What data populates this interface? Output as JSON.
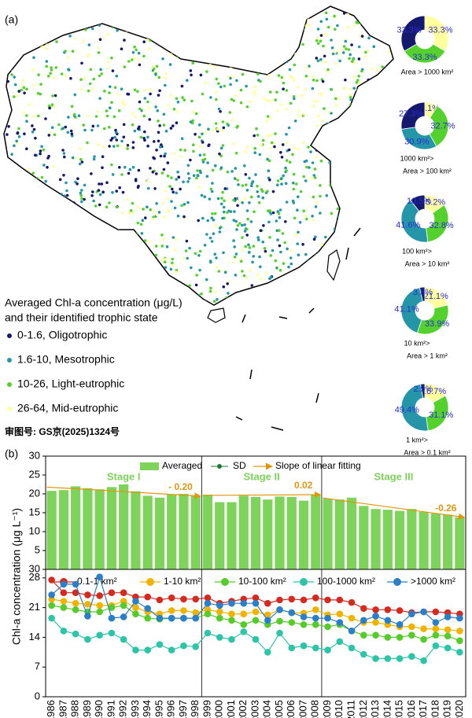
{
  "panel_a": {
    "label": "(a)",
    "legend_title": [
      "Averaged Chl-a concentration (μg/L)",
      "and their identified trophic state"
    ],
    "legend": [
      {
        "label": "0-1.6, Oligotrophic",
        "color": "#15196e"
      },
      {
        "label": "1.6-10, Mesotrophic",
        "color": "#2596a8"
      },
      {
        "label": "10-26, Light-eutrophic",
        "color": "#55d12e"
      },
      {
        "label": "26-64, Mid-eutrophic",
        "color": "#ffff9e"
      }
    ],
    "approval": "审图号: GS京(2025)1324号"
  },
  "panel_b": {
    "label": "(b)"
  },
  "chart_data": [
    {
      "type": "pie",
      "donut": true,
      "values": [
        33.3,
        33.3,
        33.3
      ],
      "value_labels": [
        "33.3%",
        "33.3%",
        "33.3%"
      ],
      "colors": [
        "#ffff9e",
        "#55d12e",
        "#15196e"
      ],
      "caption": [
        "Area > 1000 km²"
      ]
    },
    {
      "type": "pie",
      "donut": true,
      "values": [
        9.1,
        32.7,
        30.9,
        27.3
      ],
      "value_labels": [
        "9.1%",
        "32.7%",
        "30.9%",
        "27.3%"
      ],
      "colors": [
        "#ffff9e",
        "#55d12e",
        "#2596a8",
        "#15196e"
      ],
      "caption": [
        "1000 km²>",
        "Area > 100 km²"
      ]
    },
    {
      "type": "pie",
      "donut": true,
      "values": [
        15.2,
        32.8,
        41.6,
        10.5
      ],
      "value_labels": [
        "15.2%",
        "32.8%",
        "41.6%",
        "10.5%"
      ],
      "colors": [
        "#ffff9e",
        "#55d12e",
        "#2596a8",
        "#15196e"
      ],
      "caption": [
        "100 km²>",
        "Area > 10 km²"
      ]
    },
    {
      "type": "pie",
      "donut": true,
      "values": [
        21.1,
        33.9,
        41.1,
        3.5
      ],
      "value_labels": [
        "21.1%",
        "33.9%",
        "41.1%",
        "3.5%"
      ],
      "colors": [
        "#ffff9e",
        "#55d12e",
        "#2596a8",
        "#15196e"
      ],
      "caption": [
        "10 km²>",
        "Area > 1 km²"
      ]
    },
    {
      "type": "pie",
      "donut": true,
      "values": [
        16.7,
        31.1,
        49.4,
        2.9
      ],
      "value_labels": [
        "16.7%",
        "31.1%",
        "49.4%",
        "2.9%"
      ],
      "colors": [
        "#ffff9e",
        "#55d12e",
        "#2596a8",
        "#15196e"
      ],
      "caption": [
        "1 km²>",
        "Area > 0.1 km²"
      ]
    },
    {
      "type": "bar",
      "color": "#7ed35a",
      "categories": [
        "1986",
        "1987",
        "1988",
        "1989",
        "1990",
        "1991",
        "1992",
        "1993",
        "1994",
        "1995",
        "1996",
        "1997",
        "1998",
        "1999",
        "2000",
        "2001",
        "2002",
        "2003",
        "2004",
        "2005",
        "2006",
        "2007",
        "2008",
        "2009",
        "2010",
        "2011",
        "2012",
        "2013",
        "2014",
        "2015",
        "2016",
        "2017",
        "2018",
        "2019",
        "2020"
      ],
      "values": [
        20.8,
        21,
        22,
        21.5,
        21.2,
        21.8,
        22.5,
        20.7,
        19.5,
        19,
        19.8,
        20,
        19.5,
        19.8,
        17.8,
        17.8,
        19.5,
        19.2,
        18.5,
        19.3,
        19.2,
        18.2,
        19.8,
        18.7,
        18.5,
        19,
        16.8,
        16,
        15.8,
        15.5,
        16,
        15.2,
        14.8,
        14.5,
        13.8
      ],
      "ylim": [
        0,
        30
      ],
      "yticks": [
        5,
        10,
        15,
        20,
        25,
        30
      ],
      "legend": [
        {
          "label": "Averaged",
          "color": "#7ed35a"
        },
        {
          "label": "SD",
          "color": "#1f7a3a"
        },
        {
          "label": "Slope of linear fitting",
          "color": "#e0960f"
        }
      ],
      "stages": [
        {
          "name": "Stage I",
          "from": "1986",
          "to": "1998"
        },
        {
          "name": "Stage II",
          "from": "1999",
          "to": "2008"
        },
        {
          "name": "Stage III",
          "from": "2009",
          "to": "2020"
        }
      ],
      "stage_color": "#7ed35a",
      "trends": [
        {
          "label": "- 0.20",
          "from": "1986",
          "to": "1998",
          "values": [
            21.8,
            19.4
          ]
        },
        {
          "label": "0.02",
          "from": "1999",
          "to": "2008",
          "values": [
            19.6,
            19.8
          ]
        },
        {
          "label": "-0.26",
          "from": "2009",
          "to": "2020",
          "values": [
            18.9,
            13.8
          ]
        }
      ],
      "trend_color": "#e0960f"
    },
    {
      "type": "line",
      "ylabel": "Chl-a concentration (μg L⁻¹)",
      "categories": [
        "1986",
        "1987",
        "1988",
        "1989",
        "1990",
        "1991",
        "1992",
        "1993",
        "1994",
        "1995",
        "1996",
        "1997",
        "1998",
        "1999",
        "2000",
        "2001",
        "2002",
        "2003",
        "2004",
        "2005",
        "2006",
        "2007",
        "2008",
        "2009",
        "2010",
        "2011",
        "2012",
        "2013",
        "2014",
        "2015",
        "2016",
        "2017",
        "2018",
        "2019",
        "2020"
      ],
      "ylim": [
        0,
        30
      ],
      "yticks": [
        0,
        7,
        14,
        21,
        28,
        30
      ],
      "series": [
        {
          "name": "0.1-1 km²",
          "color": "#d42a20",
          "values": [
            27.5,
            24.5,
            24.5,
            24,
            23.8,
            24.5,
            24.5,
            23.5,
            23.5,
            22.8,
            23.3,
            23,
            23,
            23.3,
            22,
            22.5,
            23,
            23.3,
            22,
            22.8,
            23,
            22.8,
            23.3,
            22.8,
            22.8,
            22.2,
            20.8,
            20.5,
            20.5,
            20.3,
            19.8,
            20,
            20,
            19.8,
            19.5
          ]
        },
        {
          "name": "1-10 km²",
          "color": "#f0b400",
          "values": [
            23,
            22.5,
            22,
            21.8,
            21.5,
            21.5,
            22.5,
            21,
            20,
            19.5,
            20.3,
            20.3,
            19.8,
            20.5,
            20,
            19.5,
            19.5,
            20,
            19.3,
            20.5,
            19.8,
            19.7,
            20.5,
            19.3,
            19.5,
            18.5,
            17.5,
            17.5,
            17,
            16.5,
            16.5,
            16,
            16,
            15.8,
            15.5
          ]
        },
        {
          "name": "10-100 km²",
          "color": "#55cc2a",
          "values": [
            21.5,
            21,
            20.5,
            20,
            20,
            21,
            21.5,
            19.5,
            18.5,
            18.3,
            18.5,
            18.5,
            18.5,
            19.5,
            18.5,
            18,
            17,
            18,
            17,
            17.8,
            17.5,
            17,
            17,
            16.5,
            17,
            15.5,
            14.5,
            14.5,
            14,
            14,
            14.5,
            13.5,
            14.5,
            14.3,
            13.2
          ]
        },
        {
          "name": "100-1000 km²",
          "color": "#2ec4a8",
          "values": [
            18.5,
            15.5,
            14.8,
            13.5,
            14.5,
            15,
            13.5,
            11,
            11,
            12.3,
            11,
            12,
            11.8,
            15,
            14,
            13.5,
            15.3,
            13.5,
            10.5,
            15,
            11.5,
            12,
            11.5,
            11,
            13,
            11.5,
            10,
            9,
            9,
            9,
            9.5,
            8.5,
            12,
            11.5,
            10.5
          ]
        },
        {
          "name": ">1000 km²",
          "color": "#2a7fc8",
          "values": [
            24,
            26.5,
            26.5,
            19,
            28.2,
            18.5,
            18.8,
            22.5,
            20.8,
            18.5,
            18.5,
            18.5,
            18.5,
            22,
            21.5,
            22,
            22,
            22,
            18,
            20.5,
            19.8,
            18.8,
            18.5,
            18.5,
            17.5,
            15.5,
            18,
            19,
            18,
            17,
            19.5,
            20,
            17.5,
            18.8,
            18.5
          ]
        }
      ]
    }
  ]
}
